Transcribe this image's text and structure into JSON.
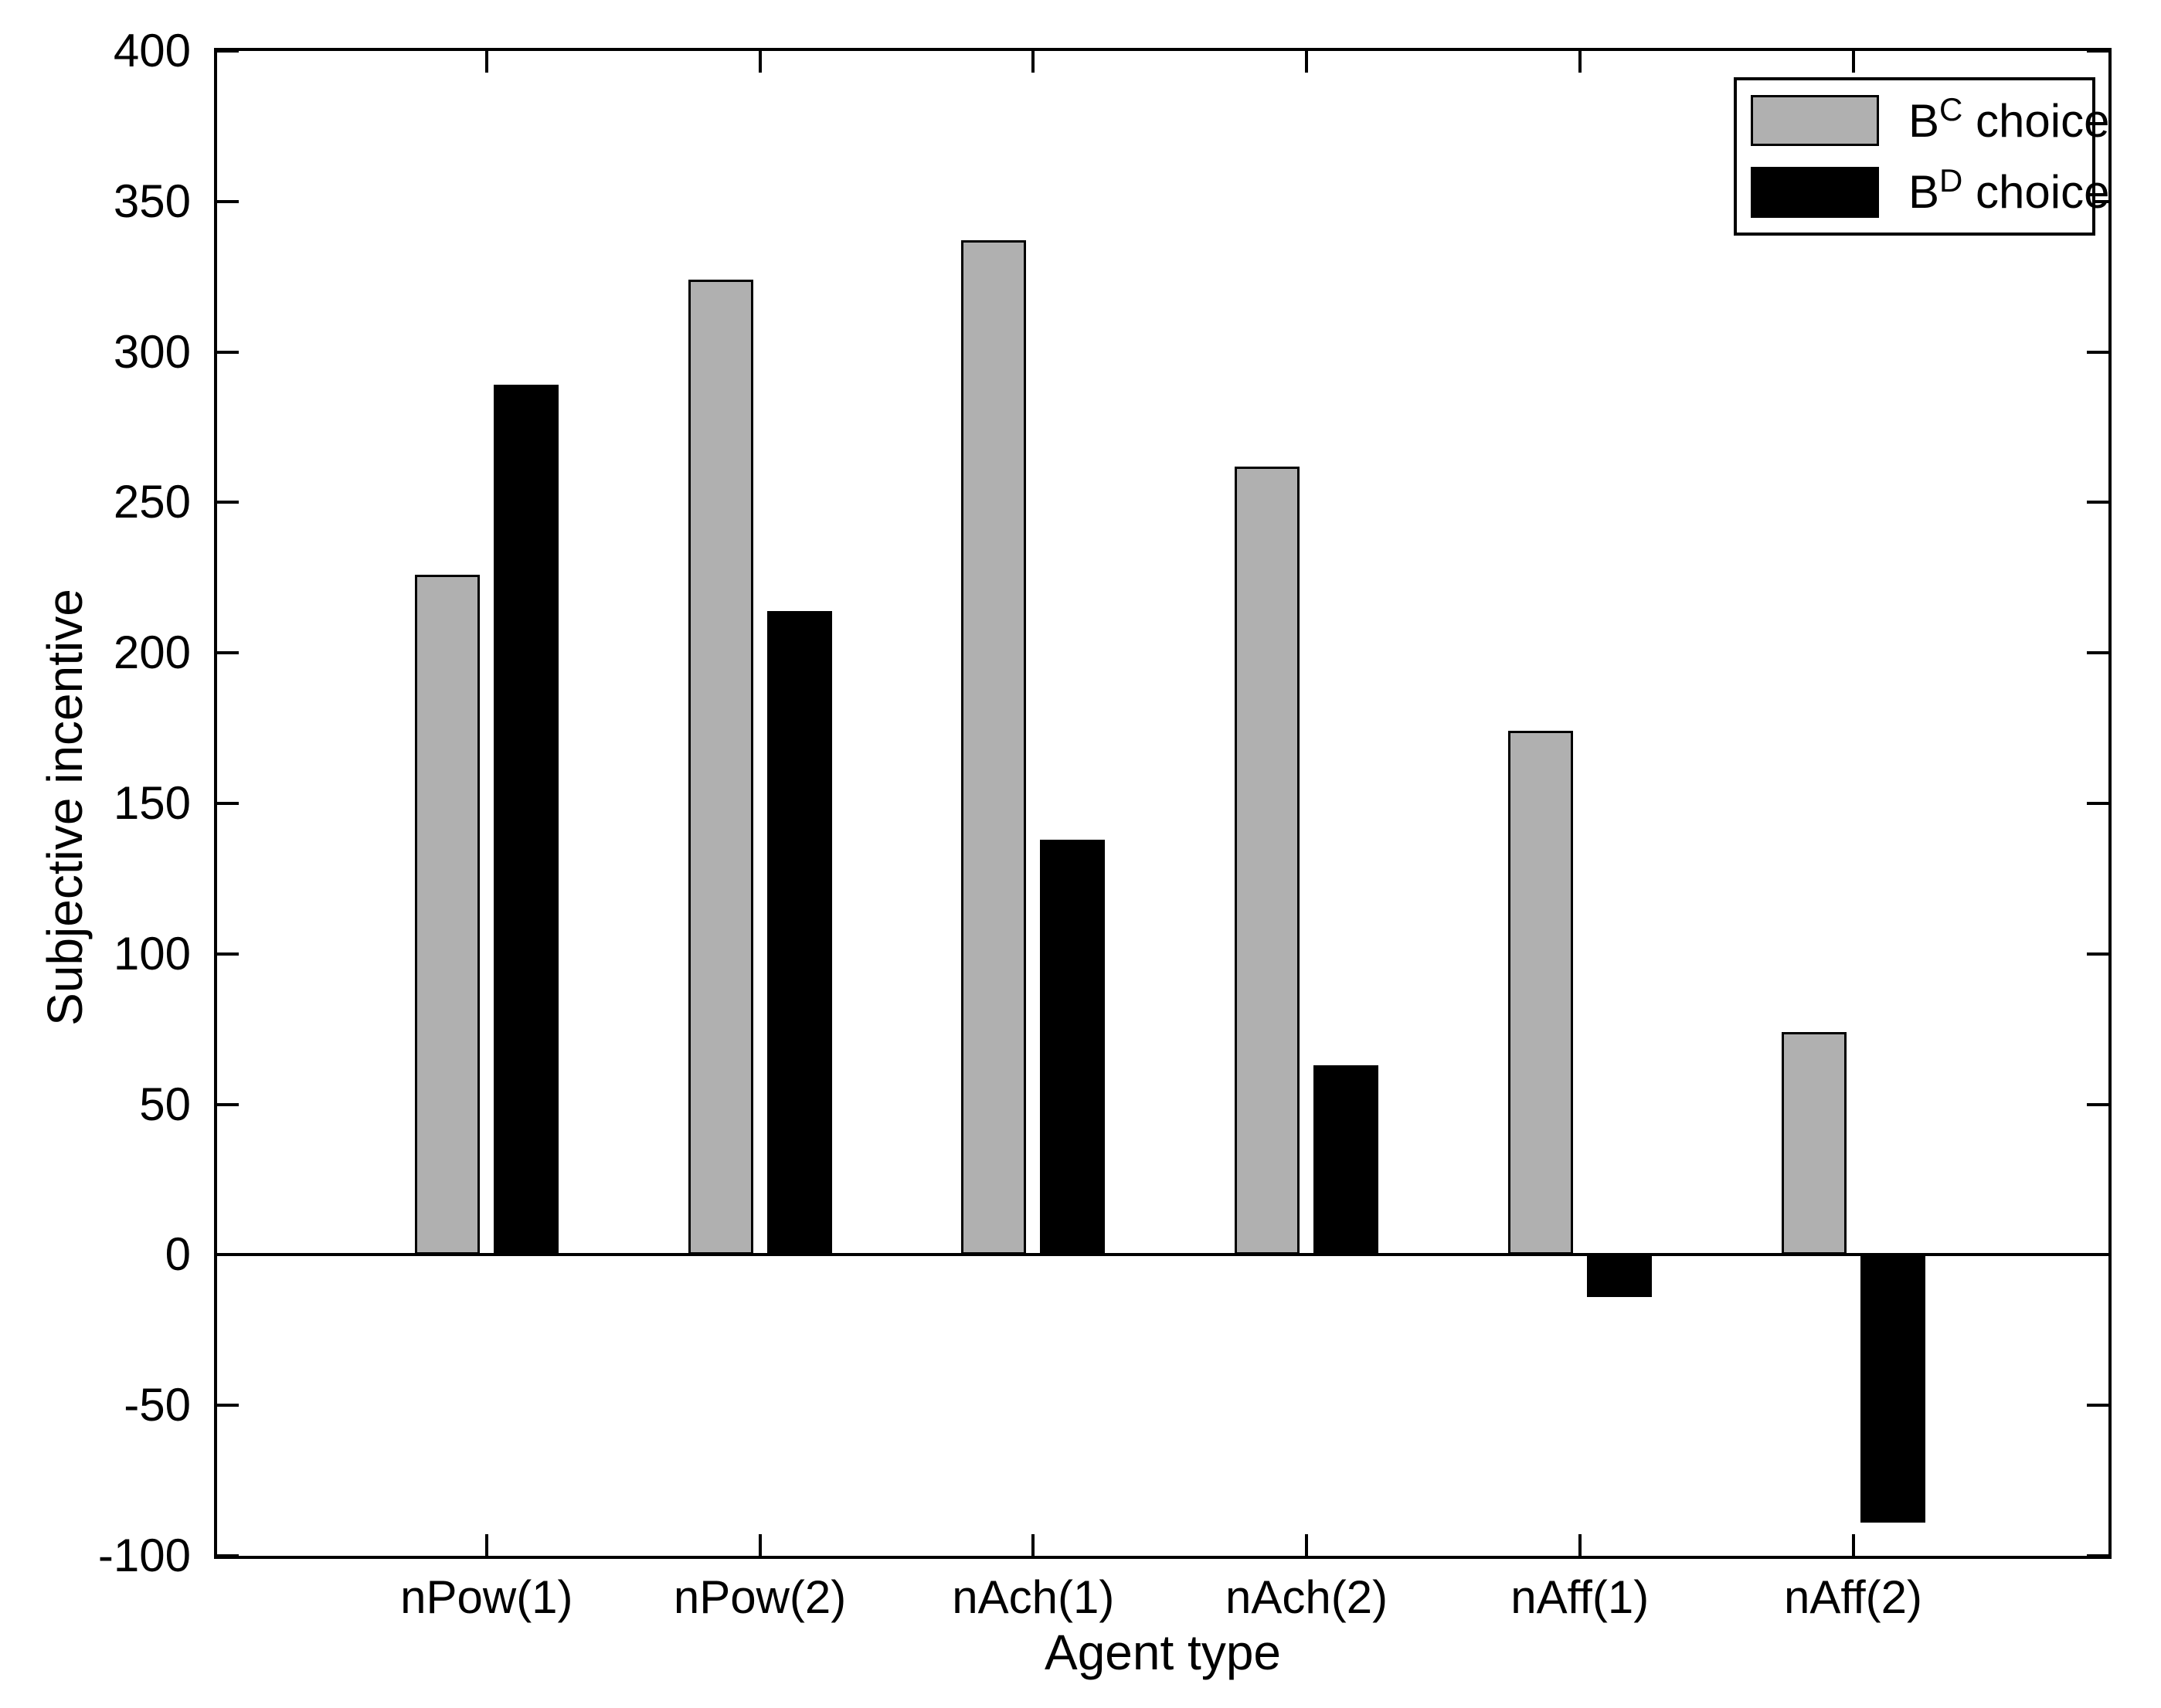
{
  "figure": {
    "background": "#ffffff",
    "frame_color": "#000000"
  },
  "chart_data": {
    "type": "bar",
    "title": "",
    "xlabel": "Agent type",
    "ylabel": "Subjective incentive",
    "categories": [
      "nPow(1)",
      "nPow(2)",
      "nAch(1)",
      "nAch(2)",
      "nAff(1)",
      "nAff(2)"
    ],
    "series": [
      {
        "name": "BC choice",
        "label_base": "B",
        "label_sup": "C",
        "label_suffix": " choice",
        "color": "#b0b0b0",
        "values": [
          226,
          324,
          337,
          262,
          174,
          74
        ]
      },
      {
        "name": "BD choice",
        "label_base": "B",
        "label_sup": "D",
        "label_suffix": " choice",
        "color": "#000000",
        "values": [
          289,
          214,
          138,
          63,
          -14,
          -89
        ]
      }
    ],
    "ylim": [
      -100,
      400
    ],
    "yticks": [
      -100,
      -50,
      0,
      50,
      100,
      150,
      200,
      250,
      300,
      350,
      400
    ],
    "grid": false,
    "zero_line": true,
    "legend_position": "top-right",
    "bar_edge_color": "#000000"
  }
}
